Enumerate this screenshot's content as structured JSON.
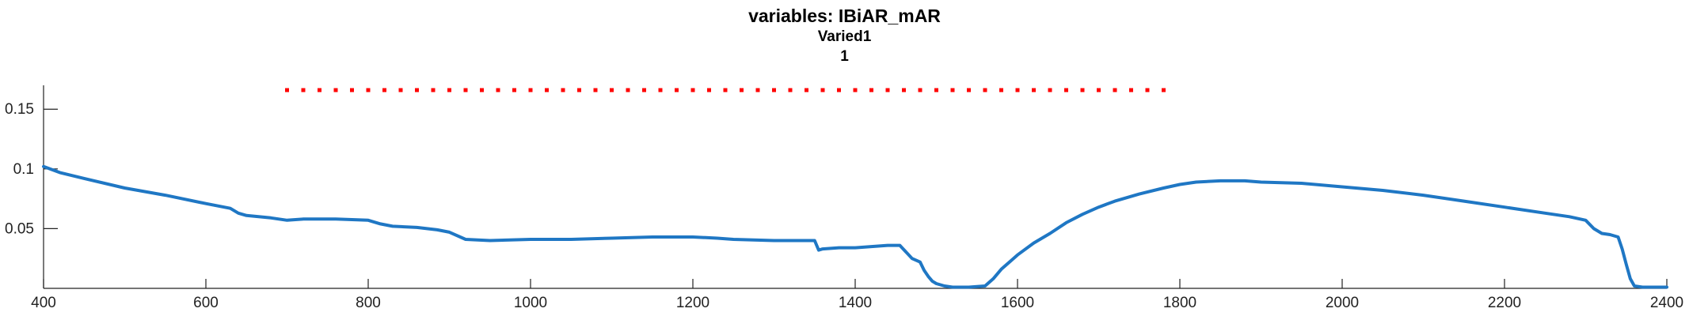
{
  "title": "variables: IBiAR_mAR",
  "subtitle": "Varied1",
  "subtitle2": "1",
  "chart_data": {
    "type": "line",
    "title": "variables: IBiAR_mAR",
    "xlim": [
      400,
      2400
    ],
    "ylim": [
      0,
      0.17
    ],
    "xticks": [
      400,
      600,
      800,
      1000,
      1200,
      1400,
      1600,
      1800,
      2000,
      2200,
      2400
    ],
    "xtick_labels": [
      "400",
      "600",
      "800",
      "1000",
      "1200",
      "1400",
      "1600",
      "1800",
      "2000",
      "2200",
      "2400"
    ],
    "yticks": [
      0.05,
      0.1,
      0.15
    ],
    "ytick_labels": [
      "0.05",
      "0.1",
      "0.15"
    ],
    "grid": false,
    "series": [
      {
        "color": "#1f77c4",
        "x": [
          400,
          420,
          450,
          500,
          550,
          600,
          630,
          640,
          650,
          680,
          700,
          720,
          760,
          800,
          815,
          830,
          860,
          885,
          900,
          920,
          950,
          1000,
          1050,
          1100,
          1150,
          1200,
          1230,
          1250,
          1300,
          1350,
          1355,
          1360,
          1380,
          1400,
          1440,
          1455,
          1470,
          1480,
          1485,
          1490,
          1495,
          1500,
          1510,
          1520,
          1530,
          1540,
          1560,
          1570,
          1580,
          1590,
          1600,
          1620,
          1640,
          1660,
          1680,
          1700,
          1720,
          1750,
          1780,
          1800,
          1820,
          1850,
          1880,
          1900,
          1950,
          2000,
          2050,
          2100,
          2150,
          2200,
          2250,
          2280,
          2300,
          2310,
          2320,
          2330,
          2340,
          2345,
          2350,
          2355,
          2360,
          2370,
          2400
        ],
        "y": [
          0.102,
          0.097,
          0.092,
          0.084,
          0.078,
          0.071,
          0.067,
          0.063,
          0.061,
          0.059,
          0.057,
          0.058,
          0.058,
          0.057,
          0.054,
          0.052,
          0.051,
          0.049,
          0.047,
          0.041,
          0.04,
          0.041,
          0.041,
          0.042,
          0.043,
          0.043,
          0.042,
          0.041,
          0.04,
          0.04,
          0.032,
          0.033,
          0.034,
          0.034,
          0.036,
          0.036,
          0.025,
          0.022,
          0.015,
          0.01,
          0.006,
          0.004,
          0.002,
          0.001,
          0.001,
          0.001,
          0.002,
          0.008,
          0.016,
          0.022,
          0.028,
          0.038,
          0.046,
          0.055,
          0.062,
          0.068,
          0.073,
          0.079,
          0.084,
          0.087,
          0.089,
          0.09,
          0.09,
          0.089,
          0.088,
          0.085,
          0.082,
          0.078,
          0.073,
          0.068,
          0.063,
          0.06,
          0.057,
          0.05,
          0.046,
          0.045,
          0.043,
          0.033,
          0.02,
          0.008,
          0.002,
          0.001,
          0.001
        ]
      }
    ],
    "markers": {
      "color": "#ff0000",
      "y": 0.166,
      "x_start": 700,
      "x_end": 1780,
      "step": 20
    }
  }
}
